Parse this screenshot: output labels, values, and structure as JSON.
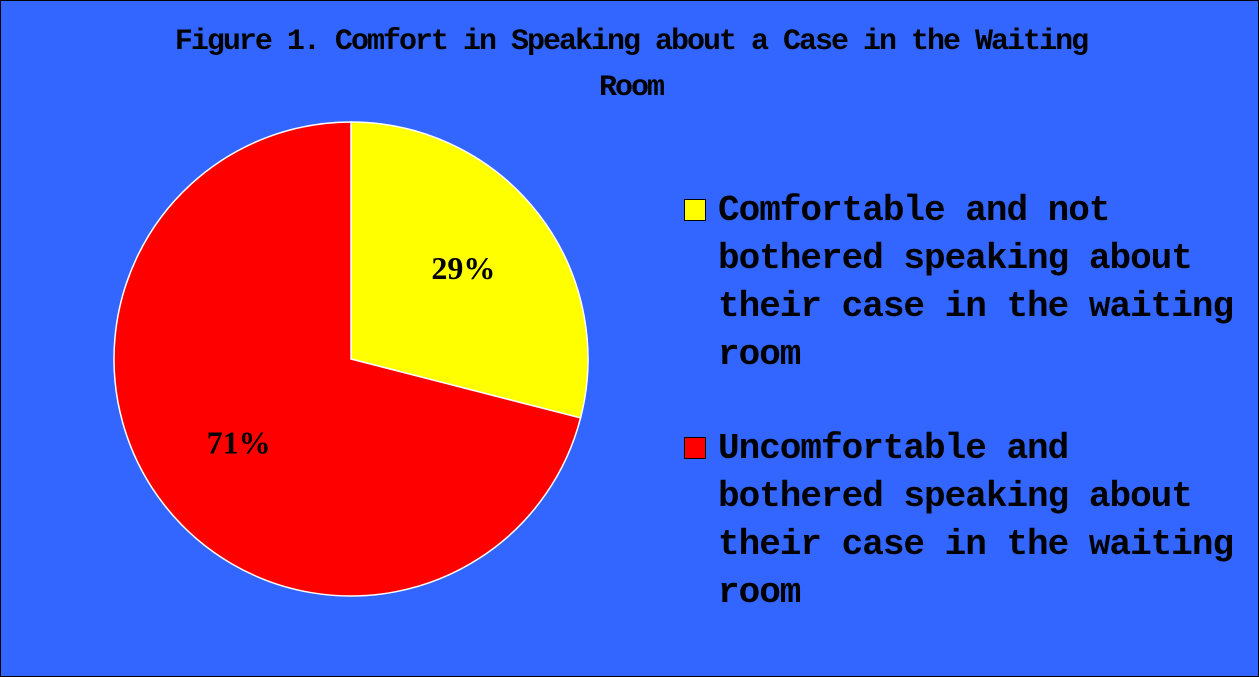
{
  "chart_data": {
    "type": "pie",
    "title": "Figure 1. Comfort in Speaking about a Case in the Waiting Room",
    "categories": [
      "Comfortable and not bothered speaking about their case in the waiting room",
      "Uncomfortable and bothered speaking about their case in the waiting room"
    ],
    "values": [
      29,
      71
    ],
    "value_labels": [
      "29%",
      "71%"
    ],
    "colors": [
      "#ffff00",
      "#ff0000"
    ],
    "legend": "right"
  }
}
